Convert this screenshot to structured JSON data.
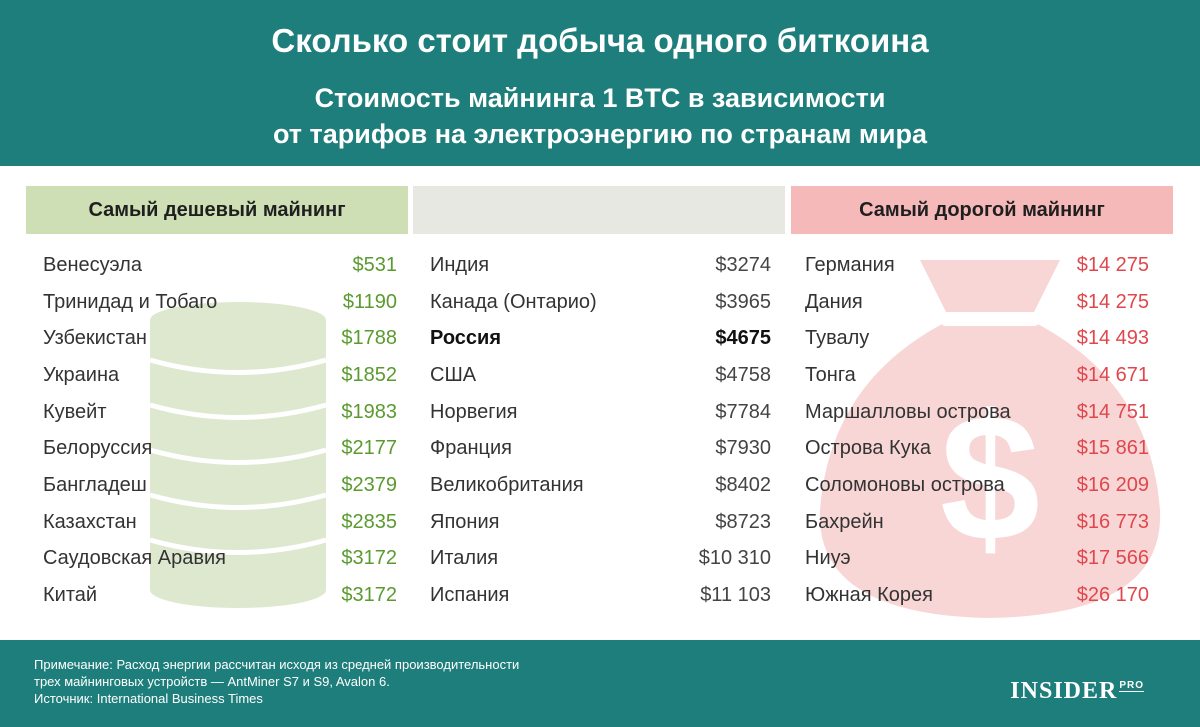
{
  "header": {
    "title": "Сколько стоит добыча одного биткоина",
    "subtitle_line1": "Стоимость майнинга 1 BTC в зависимости",
    "subtitle_line2": "от тарифов на электроэнергию по странам мира"
  },
  "columns": {
    "left_heading": "Самый дешевый майнинг",
    "middle_heading": "",
    "right_heading": "Самый дорогой майнинг"
  },
  "cheapest": [
    {
      "country": "Венесуэла",
      "cost": "$531"
    },
    {
      "country": "Тринидад и Тобаго",
      "cost": "$1190"
    },
    {
      "country": "Узбекистан",
      "cost": "$1788"
    },
    {
      "country": "Украина",
      "cost": "$1852"
    },
    {
      "country": "Кувейт",
      "cost": "$1983"
    },
    {
      "country": "Белоруссия",
      "cost": "$2177"
    },
    {
      "country": "Бангладеш",
      "cost": "$2379"
    },
    {
      "country": "Казахстан",
      "cost": "$2835"
    },
    {
      "country": "Саудовская Аравия",
      "cost": "$3172"
    },
    {
      "country": "Китай",
      "cost": "$3172"
    }
  ],
  "middle": [
    {
      "country": "Индия",
      "cost": "$3274"
    },
    {
      "country": "Канада (Онтарио)",
      "cost": "$3965"
    },
    {
      "country": "Россия",
      "cost": "$4675"
    },
    {
      "country": "США",
      "cost": "$4758"
    },
    {
      "country": "Норвегия",
      "cost": "$7784"
    },
    {
      "country": "Франция",
      "cost": "$7930"
    },
    {
      "country": "Великобритания",
      "cost": "$8402"
    },
    {
      "country": "Япония",
      "cost": "$8723"
    },
    {
      "country": "Италия",
      "cost": "$10 310"
    },
    {
      "country": "Испания",
      "cost": "$11 103"
    }
  ],
  "most_expensive": [
    {
      "country": "Германия",
      "cost": "$14 275"
    },
    {
      "country": "Дания",
      "cost": "$14 275"
    },
    {
      "country": "Тувалу",
      "cost": "$14 493"
    },
    {
      "country": "Тонга",
      "cost": "$14 671"
    },
    {
      "country": "Маршалловы острова",
      "cost": "$14 751"
    },
    {
      "country": "Острова Кука",
      "cost": "$15 861"
    },
    {
      "country": "Соломоновы острова",
      "cost": "$16 209"
    },
    {
      "country": "Бахрейн",
      "cost": "$16 773"
    },
    {
      "country": "Ниуэ",
      "cost": "$17 566"
    },
    {
      "country": "Южная Корея",
      "cost": "$26 170"
    }
  ],
  "footer": {
    "note_line1": "Примечание: Расход энергии рассчитан исходя из средней производительности",
    "note_line2": "трех майнинговых устройств — AntMiner S7 и S9, Avalon 6.",
    "source": "Источник: International Business Times",
    "brand": "INSIDER",
    "brand_suffix": "PRO"
  },
  "icons": {
    "left_decoration": "coin-stack-icon",
    "right_decoration": "money-bag-icon"
  },
  "colors": {
    "header_bg": "#1e7e7b",
    "cheap_heading_bg": "#cfdfb5",
    "middle_heading_bg": "#e8e8e2",
    "expensive_heading_bg": "#f6b9b9",
    "cheap_value": "#5a9a2f",
    "expensive_value": "#e0474c"
  }
}
